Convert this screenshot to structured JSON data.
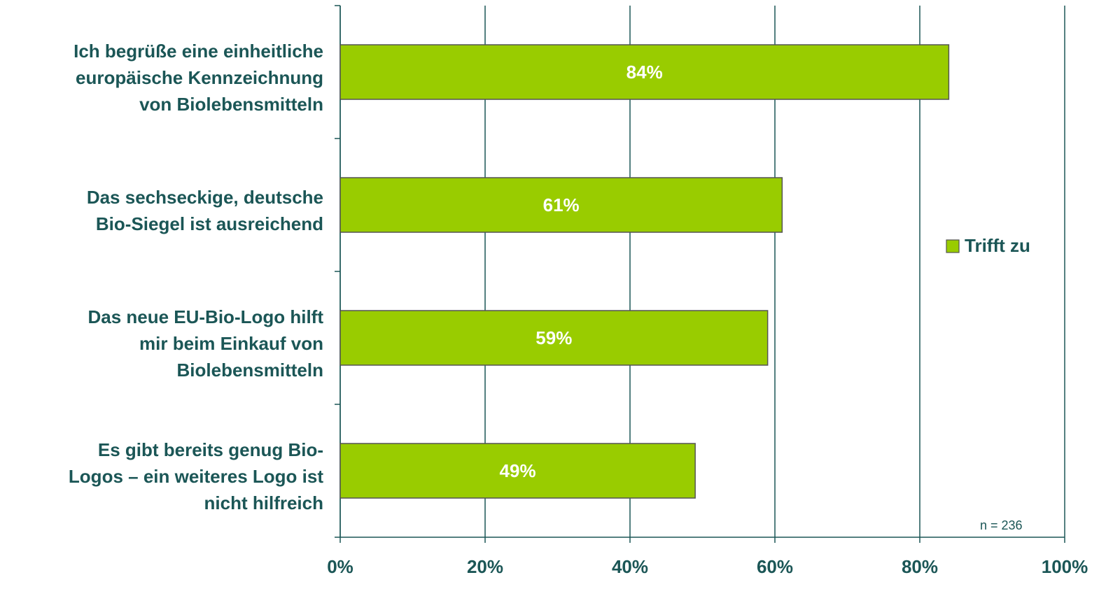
{
  "chart_data": {
    "type": "barh",
    "categories": [
      [
        "Ich begrüße eine einheitliche",
        "europäische Kennzeichnung",
        "von Biolebensmitteln"
      ],
      [
        "Das sechseckige, deutsche",
        "Bio-Siegel ist ausreichend"
      ],
      [
        "Das neue EU-Bio-Logo hilft",
        "mir beim Einkauf von",
        "Biolebensmitteln"
      ],
      [
        "Es gibt bereits genug Bio-",
        "Logos – ein weiteres Logo ist",
        "nicht hilfreich"
      ]
    ],
    "series": [
      {
        "name": "Trifft zu",
        "color": "#99cc00",
        "values": [
          84,
          61,
          59,
          49
        ],
        "value_labels": [
          "84%",
          "61%",
          "59%",
          "49%"
        ]
      }
    ],
    "xlim": [
      0,
      100
    ],
    "xticks": [
      {
        "value": 0,
        "label": "0%"
      },
      {
        "value": 20,
        "label": "20%"
      },
      {
        "value": 40,
        "label": "40%"
      },
      {
        "value": 60,
        "label": "60%"
      },
      {
        "value": 80,
        "label": "80%"
      },
      {
        "value": 100,
        "label": "100%"
      }
    ],
    "grid": true,
    "legend": "right",
    "annotations": [
      "n = 236"
    ]
  }
}
